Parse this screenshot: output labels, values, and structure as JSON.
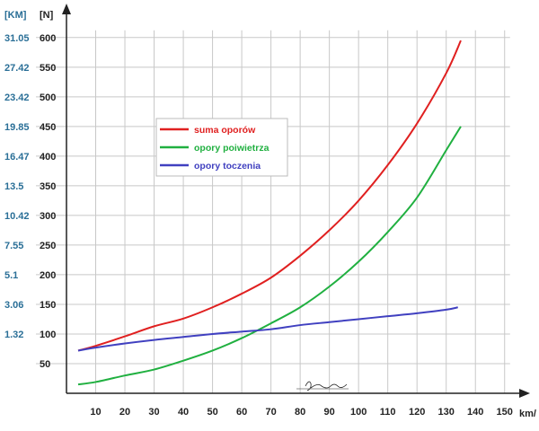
{
  "chart_data": {
    "type": "line",
    "title": "",
    "x_axis": {
      "label": "km/",
      "ticks": [
        10,
        20,
        30,
        40,
        50,
        60,
        70,
        80,
        90,
        100,
        110,
        120,
        130,
        140,
        150
      ],
      "range": [
        0,
        155
      ]
    },
    "y_axis": {
      "label": "[N]",
      "ticks": [
        50,
        100,
        150,
        200,
        250,
        300,
        350,
        400,
        450,
        500,
        550,
        600
      ],
      "range": [
        0,
        630
      ]
    },
    "secondary_y_axis": {
      "label": "[KM]",
      "ticks": [
        {
          "at": 100,
          "label": "1.32"
        },
        {
          "at": 150,
          "label": "3.06"
        },
        {
          "at": 200,
          "label": "5.1"
        },
        {
          "at": 250,
          "label": "7.55"
        },
        {
          "at": 300,
          "label": "10.42"
        },
        {
          "at": 350,
          "label": "13.5"
        },
        {
          "at": 400,
          "label": "16.47"
        },
        {
          "at": 450,
          "label": "19.85"
        },
        {
          "at": 500,
          "label": "23.42"
        },
        {
          "at": 550,
          "label": "27.42"
        },
        {
          "at": 600,
          "label": "31.05"
        }
      ]
    },
    "grid": true,
    "legend_placement": "upper-left-center",
    "series": [
      {
        "name": "suma oporów",
        "color": "#e02020",
        "x": [
          4,
          10,
          20,
          30,
          40,
          50,
          60,
          70,
          80,
          90,
          100,
          110,
          120,
          130,
          135
        ],
        "y": [
          72,
          80,
          96,
          113,
          126,
          145,
          168,
          195,
          232,
          275,
          325,
          385,
          455,
          540,
          595
        ]
      },
      {
        "name": "opory poiwietrza",
        "color": "#20b040",
        "x": [
          4,
          10,
          20,
          30,
          40,
          50,
          60,
          70,
          80,
          90,
          100,
          110,
          120,
          130,
          135
        ],
        "y": [
          15,
          19,
          30,
          40,
          55,
          72,
          93,
          118,
          145,
          180,
          222,
          272,
          330,
          410,
          450
        ]
      },
      {
        "name": "opory toczenia",
        "color": "#4040c0",
        "x": [
          4,
          10,
          20,
          30,
          40,
          50,
          60,
          70,
          80,
          90,
          100,
          110,
          120,
          130,
          134
        ],
        "y": [
          72,
          77,
          84,
          90,
          95,
          100,
          104,
          108,
          115,
          120,
          125,
          130,
          135,
          141,
          145
        ]
      }
    ]
  }
}
